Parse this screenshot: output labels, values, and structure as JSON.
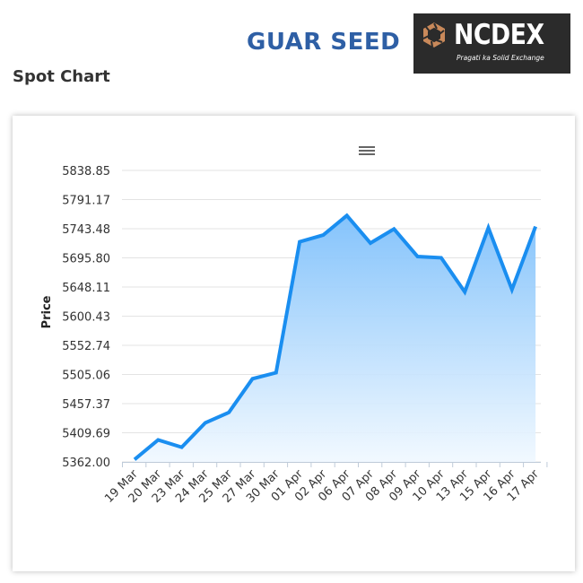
{
  "header": {
    "product_title": "GUAR SEED",
    "logo": {
      "name": "NCDEX",
      "tagline": "Pragati ka Solid Exchange"
    }
  },
  "section_title": "Spot Chart",
  "colors": {
    "title": "#2e5fa5",
    "line": "#1a8ef0",
    "area_top": "#7ec0fb",
    "area_bottom": "#f0f8ff",
    "logo_bg": "#2b2b2b",
    "logo_mark": "#c9895a"
  },
  "icons": {
    "menu": "hamburger-menu-icon"
  },
  "chart_data": {
    "type": "area",
    "title": "",
    "xlabel": "",
    "ylabel": "Price",
    "grid": true,
    "legend": "none",
    "categories": [
      "19 Mar",
      "20 Mar",
      "23 Mar",
      "24 Mar",
      "25 Mar",
      "27 Mar",
      "30 Mar",
      "01 Apr",
      "02 Apr",
      "06 Apr",
      "07 Apr",
      "08 Apr",
      "09 Apr",
      "10 Apr",
      "13 Apr",
      "15 Apr",
      "16 Apr",
      "17 Apr"
    ],
    "values": [
      5366,
      5398,
      5386,
      5426,
      5443,
      5498,
      5508,
      5722,
      5733,
      5765,
      5720,
      5743,
      5698,
      5696,
      5640,
      5745,
      5644,
      5747
    ],
    "ylim": [
      5362.0,
      5838.85
    ],
    "yticks": [
      "5362.00",
      "5409.69",
      "5457.37",
      "5505.06",
      "5552.74",
      "5600.43",
      "5648.11",
      "5695.80",
      "5743.48",
      "5791.17",
      "5838.85"
    ]
  }
}
